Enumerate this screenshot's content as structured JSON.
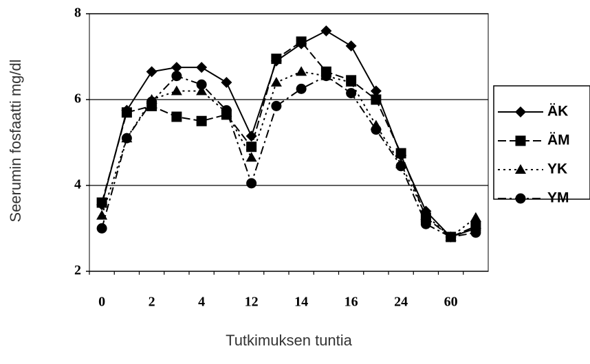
{
  "chart_data": {
    "type": "line",
    "xlabel": "Tutkimuksen tuntia",
    "ylabel": "Seerumin fosfaatti mg/dl",
    "categories": [
      "0",
      null,
      "2",
      null,
      "4",
      null,
      "12",
      null,
      "14",
      null,
      "16",
      null,
      "24",
      null,
      "60",
      null
    ],
    "series": [
      {
        "name": "ÄK",
        "color": "#000000",
        "marker": "diamond",
        "dash": "solid",
        "values": [
          3.55,
          5.75,
          6.65,
          6.75,
          6.75,
          6.4,
          5.15,
          6.9,
          7.3,
          7.6,
          7.25,
          6.2,
          4.7,
          3.4,
          2.8,
          3.0
        ]
      },
      {
        "name": "ÄM",
        "color": "#000000",
        "marker": "square",
        "dash": "longdash",
        "values": [
          3.6,
          5.7,
          5.85,
          5.6,
          5.5,
          5.65,
          4.9,
          6.95,
          7.35,
          6.65,
          6.45,
          6.0,
          4.75,
          3.25,
          2.8,
          3.05
        ]
      },
      {
        "name": "YK",
        "color": "#000000",
        "marker": "triangle",
        "dash": "dot",
        "values": [
          3.3,
          5.1,
          6.0,
          6.2,
          6.2,
          5.7,
          4.65,
          6.4,
          6.65,
          6.55,
          6.4,
          5.4,
          4.5,
          3.3,
          2.8,
          3.25
        ]
      },
      {
        "name": "YM",
        "color": "#000000",
        "marker": "circle",
        "dash": "dashdot",
        "values": [
          3.0,
          5.1,
          5.95,
          6.55,
          6.35,
          5.75,
          4.05,
          5.85,
          6.25,
          6.55,
          6.15,
          5.3,
          4.45,
          3.1,
          2.8,
          2.9
        ]
      }
    ],
    "ylim": [
      2,
      8
    ],
    "yticks": [
      2,
      4,
      6,
      8
    ],
    "grid": true,
    "legend": "right"
  }
}
